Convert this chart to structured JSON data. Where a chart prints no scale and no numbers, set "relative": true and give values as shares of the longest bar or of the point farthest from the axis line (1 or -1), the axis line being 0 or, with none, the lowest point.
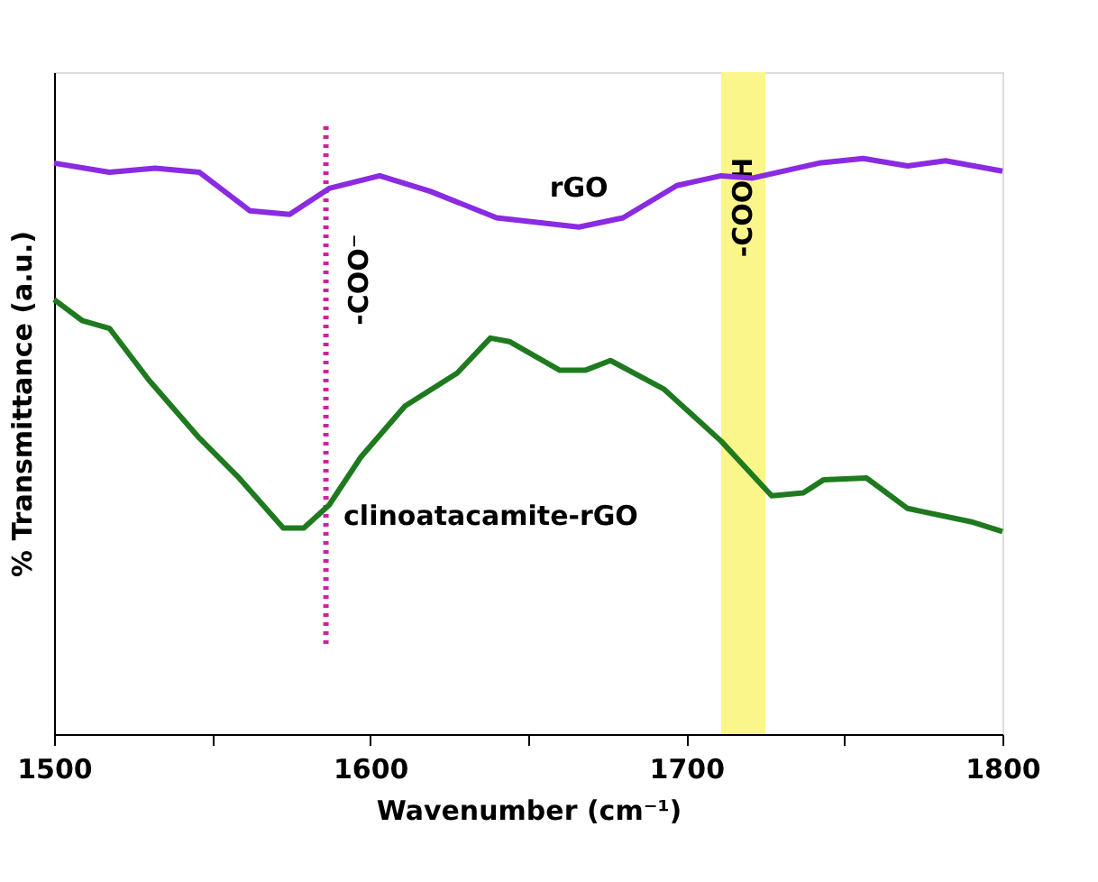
{
  "chart_data": {
    "type": "line",
    "xlabel": "Wavenumber (cm⁻¹)",
    "ylabel": "% Transmittance (a.u.)",
    "relative": true,
    "xlim": [
      1500,
      1800
    ],
    "xticks": [
      1500,
      {
        "value": 1550,
        "label": null
      },
      1600,
      {
        "value": 1650,
        "label": null
      },
      1700,
      {
        "value": 1750,
        "label": null
      },
      1800
    ],
    "tick_labels": "x",
    "grid": false,
    "marker": "none",
    "line_style": "solid",
    "series": [
      {
        "name": "rGO",
        "color": "#8a2be2",
        "x": [
          1500,
          1517.5,
          1532,
          1546,
          1562,
          1574.5,
          1587,
          1603,
          1619,
          1640,
          1666,
          1680,
          1697,
          1711,
          1721,
          1742,
          1756,
          1770,
          1782,
          1800
        ],
        "values": [
          0.992,
          0.976,
          0.983,
          0.976,
          0.909,
          0.903,
          0.948,
          0.97,
          0.943,
          0.897,
          0.881,
          0.897,
          0.953,
          0.97,
          0.966,
          0.992,
          1.0,
          0.987,
          0.996,
          0.978
        ]
      },
      {
        "name": "clinoatacamite-rGO",
        "color": "#1f7a1f",
        "x": [
          1500,
          1509,
          1517.5,
          1530,
          1546,
          1558,
          1572.5,
          1579,
          1587,
          1597,
          1611,
          1627.5,
          1638,
          1644,
          1660,
          1668,
          1676,
          1693,
          1711,
          1727,
          1737,
          1743.5,
          1757,
          1770,
          1790,
          1800
        ],
        "values": [
          0.755,
          0.718,
          0.705,
          0.615,
          0.514,
          0.448,
          0.358,
          0.358,
          0.398,
          0.481,
          0.57,
          0.627,
          0.688,
          0.682,
          0.632,
          0.632,
          0.649,
          0.599,
          0.509,
          0.414,
          0.419,
          0.442,
          0.445,
          0.392,
          0.369,
          0.352
        ]
      }
    ],
    "ref_lines": [
      {
        "axis": "x",
        "value": 1586,
        "label": "-COO⁻",
        "color": "#d020a0",
        "line_style": "dotted"
      }
    ],
    "bands": [
      {
        "axis": "x",
        "from": 1711,
        "to": 1725,
        "label": "-COOH",
        "color": "#fbf68a"
      }
    ]
  }
}
